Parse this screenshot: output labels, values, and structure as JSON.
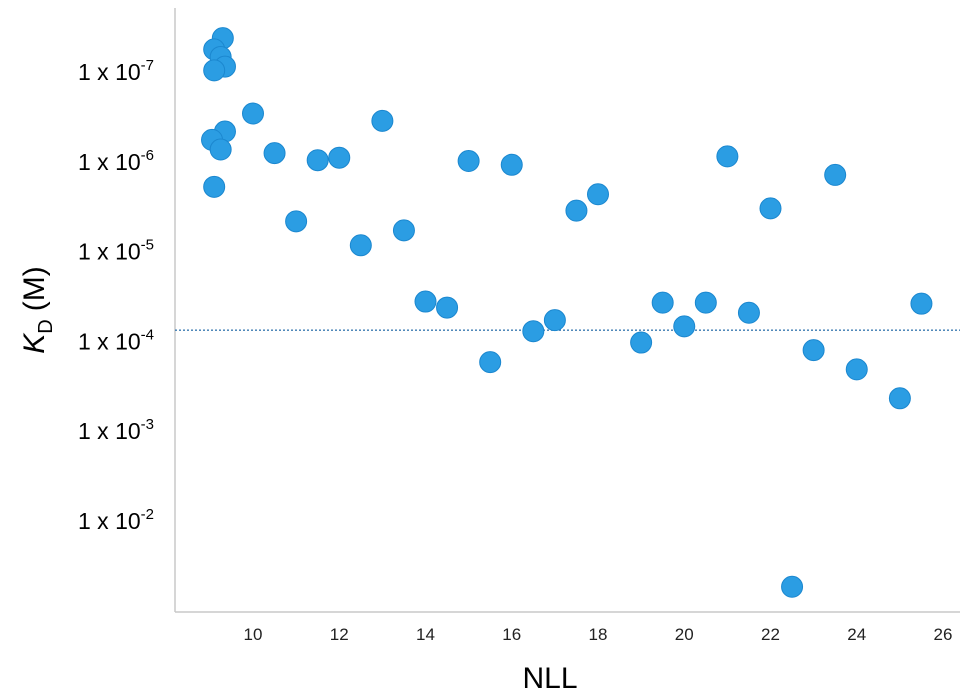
{
  "chart_data": {
    "type": "scatter",
    "xlabel": "NLL",
    "ylabel": {
      "symbol": "K",
      "subscript": "D",
      "unit": "(M)"
    },
    "y_scale": "log",
    "y_inverted": true,
    "xlim": [
      8.2,
      26.5
    ],
    "ylim": [
      3e-08,
      0.15
    ],
    "x_ticks": [
      10,
      12,
      14,
      16,
      18,
      20,
      22,
      24,
      26
    ],
    "y_ticks": [
      {
        "value": 1e-07,
        "base": "1 x 10",
        "exp": "-7"
      },
      {
        "value": 1e-06,
        "base": "1 x 10",
        "exp": "-6"
      },
      {
        "value": 1e-05,
        "base": "1 x 10",
        "exp": "-5"
      },
      {
        "value": 0.0001,
        "base": "1 x 10",
        "exp": "-4"
      },
      {
        "value": 0.001,
        "base": "1 x 10",
        "exp": "-3"
      },
      {
        "value": 0.01,
        "base": "1 x 10",
        "exp": "-2"
      }
    ],
    "reference_line": {
      "y": 7.5e-05,
      "style": "dotted",
      "color": "#3a7ab0"
    },
    "marker_color": "#2b9de3",
    "marker_edge": "#1b87cf",
    "points": [
      {
        "x": 9.3,
        "y": 4.2e-08
      },
      {
        "x": 9.1,
        "y": 5.6e-08
      },
      {
        "x": 9.25,
        "y": 6.8e-08
      },
      {
        "x": 9.35,
        "y": 8.7e-08
      },
      {
        "x": 9.1,
        "y": 9.6e-08
      },
      {
        "x": 10.0,
        "y": 2.9e-07
      },
      {
        "x": 9.35,
        "y": 4.6e-07
      },
      {
        "x": 9.05,
        "y": 5.7e-07
      },
      {
        "x": 9.25,
        "y": 7.3e-07
      },
      {
        "x": 9.1,
        "y": 1.9e-06
      },
      {
        "x": 10.5,
        "y": 8e-07
      },
      {
        "x": 11.0,
        "y": 4.6e-06
      },
      {
        "x": 11.5,
        "y": 9.6e-07
      },
      {
        "x": 12.0,
        "y": 9e-07
      },
      {
        "x": 12.5,
        "y": 8.5e-06
      },
      {
        "x": 13.0,
        "y": 3.5e-07
      },
      {
        "x": 13.5,
        "y": 5.8e-06
      },
      {
        "x": 14.0,
        "y": 3.6e-05
      },
      {
        "x": 14.5,
        "y": 4.2e-05
      },
      {
        "x": 15.0,
        "y": 9.8e-07
      },
      {
        "x": 15.5,
        "y": 0.00017
      },
      {
        "x": 16.0,
        "y": 1.08e-06
      },
      {
        "x": 16.5,
        "y": 7.7e-05
      },
      {
        "x": 17.0,
        "y": 5.8e-05
      },
      {
        "x": 17.5,
        "y": 3.5e-06
      },
      {
        "x": 18.0,
        "y": 2.3e-06
      },
      {
        "x": 19.0,
        "y": 0.000103
      },
      {
        "x": 19.5,
        "y": 3.7e-05
      },
      {
        "x": 20.0,
        "y": 6.8e-05
      },
      {
        "x": 20.5,
        "y": 3.7e-05
      },
      {
        "x": 21.0,
        "y": 8.7e-07
      },
      {
        "x": 21.5,
        "y": 4.8e-05
      },
      {
        "x": 22.0,
        "y": 3.3e-06
      },
      {
        "x": 22.5,
        "y": 0.054
      },
      {
        "x": 23.0,
        "y": 0.000125
      },
      {
        "x": 23.5,
        "y": 1.4e-06
      },
      {
        "x": 24.0,
        "y": 0.000205
      },
      {
        "x": 25.0,
        "y": 0.00043
      },
      {
        "x": 25.5,
        "y": 3.8e-05
      }
    ]
  }
}
